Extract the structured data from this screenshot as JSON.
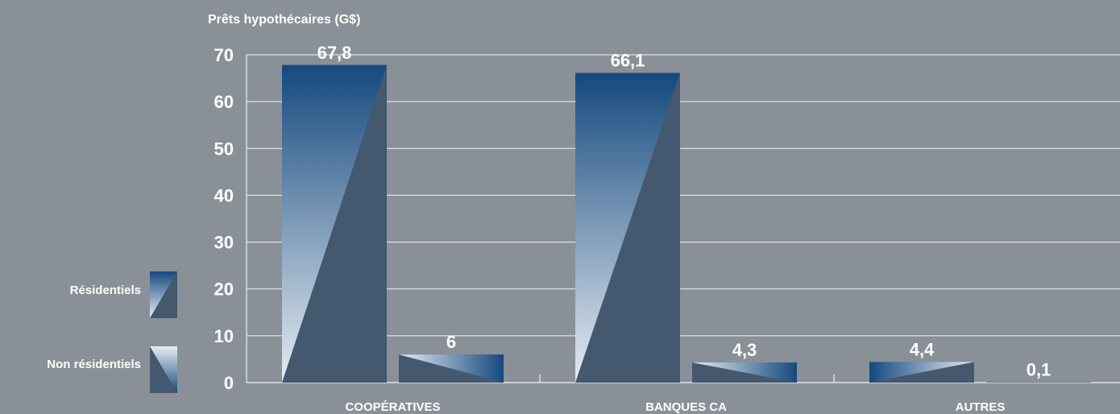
{
  "chart_data": {
    "type": "bar",
    "title": "Prêts hypothécaires (G$)",
    "xlabel": "",
    "ylabel": "",
    "ylim": [
      0,
      70
    ],
    "yticks": [
      0,
      10,
      20,
      30,
      40,
      50,
      60,
      70
    ],
    "ytick_labels": [
      "0",
      "10",
      "20",
      "30",
      "40",
      "50",
      "60",
      "70"
    ],
    "grid": true,
    "legend_position": "left",
    "categories": [
      "COOPÉRATIVES",
      "BANQUES CA",
      "AUTRES"
    ],
    "series": [
      {
        "name": "Résidentiels",
        "values": [
          67.8,
          66.1,
          4.4
        ],
        "value_labels": [
          "67,8",
          "66,1",
          "4,4"
        ],
        "color": "#1a4f86"
      },
      {
        "name": "Non résidentiels",
        "values": [
          6,
          4.3,
          0.1
        ],
        "value_labels": [
          "6",
          "4,3",
          "0,1"
        ],
        "color": "#3f5a78"
      }
    ]
  },
  "colors": {
    "background": "#8a9097",
    "bar_dark": "#15497e",
    "bar_shadow": "#44586f",
    "bar_light": "#e6ecf3",
    "gridline": "#ffffff",
    "text": "#ffffff"
  }
}
